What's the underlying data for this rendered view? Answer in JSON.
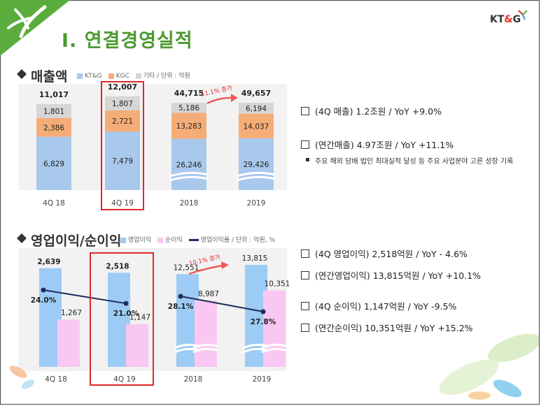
{
  "header": {
    "title": "Ⅰ. 연결경영실적",
    "logo_left": "KT",
    "logo_amp": "&",
    "logo_right": "G"
  },
  "sections": {
    "revenue": {
      "title": "매출액",
      "legend": [
        "KT&G",
        "KGC",
        "기타 / 단위 : 억원"
      ]
    },
    "profit": {
      "title": "영업이익/순이익",
      "legend": [
        "영업이익",
        "순이익",
        "영업이익률 / 단위 : 억원, %"
      ]
    }
  },
  "colors": {
    "ktg": "#a8c8ec",
    "kgc": "#f5ad78",
    "other": "#d6d6d6",
    "op": "#9ccbf5",
    "net": "#fac7f2",
    "margin": "#1d2d5a",
    "highlight": "#e02828",
    "growth": "#ef5a5a",
    "title": "#4a9a2e"
  },
  "chart_data": [
    {
      "type": "bar",
      "stacked": true,
      "categories": [
        "4Q 18",
        "4Q 19",
        "2018",
        "2019"
      ],
      "series": [
        {
          "name": "KT&G",
          "values": [
            6829,
            7479,
            26246,
            29426
          ]
        },
        {
          "name": "KGC",
          "values": [
            2386,
            2721,
            13283,
            14037
          ]
        },
        {
          "name": "기타",
          "values": [
            1801,
            1807,
            5186,
            6194
          ]
        }
      ],
      "totals": [
        "11,017",
        "12,007",
        "44,715",
        "49,657"
      ],
      "value_labels": [
        [
          "6,829",
          "7,479",
          "26,246",
          "29,426"
        ],
        [
          "2,386",
          "2,721",
          "13,283",
          "14,037"
        ],
        [
          "1,801",
          "1,807",
          "5,186",
          "6,194"
        ]
      ],
      "annotation": "11.1% 증가",
      "highlight_category": "4Q 19"
    },
    {
      "type": "bar",
      "categories": [
        "4Q 18",
        "4Q 19",
        "2018",
        "2019"
      ],
      "series": [
        {
          "name": "영업이익",
          "values": [
            2639,
            2518,
            12551,
            13815
          ],
          "labels": [
            "2,639",
            "2,518",
            "12,551",
            "13,815"
          ]
        },
        {
          "name": "순이익",
          "values": [
            1267,
            1147,
            8987,
            10351
          ],
          "labels": [
            "1,267",
            "1,147",
            "8,987",
            "10,351"
          ]
        },
        {
          "name": "영업이익률",
          "type": "line",
          "values": [
            24.0,
            21.0,
            28.1,
            27.8
          ],
          "labels": [
            "24.0%",
            "21.0%",
            "28.1%",
            "27.8%"
          ]
        }
      ],
      "annotation": "10.1% 증가",
      "highlight_category": "4Q 19"
    }
  ],
  "notes": {
    "revenue": [
      {
        "text": "(4Q 매출) 1.2조원 / YoY +9.0%"
      },
      {
        "text": "(연간매출) 4.97조원 / YoY +11.1%"
      }
    ],
    "revenue_sub": "주요 해외 담배 법인 최대실적 달성 등 주요 사업분야 고른 성장 기록",
    "profit": [
      {
        "text": "(4Q 영업이익) 2,518억원 / YoY - 4.6%"
      },
      {
        "text": "(연간영업이익) 13,815억원 / YoY +10.1%"
      },
      {
        "text": "(4Q 순이익) 1,147억원 / YoY -9.5%"
      },
      {
        "text": "(연간순이익) 10,351억원 / YoY +15.2%"
      }
    ]
  }
}
